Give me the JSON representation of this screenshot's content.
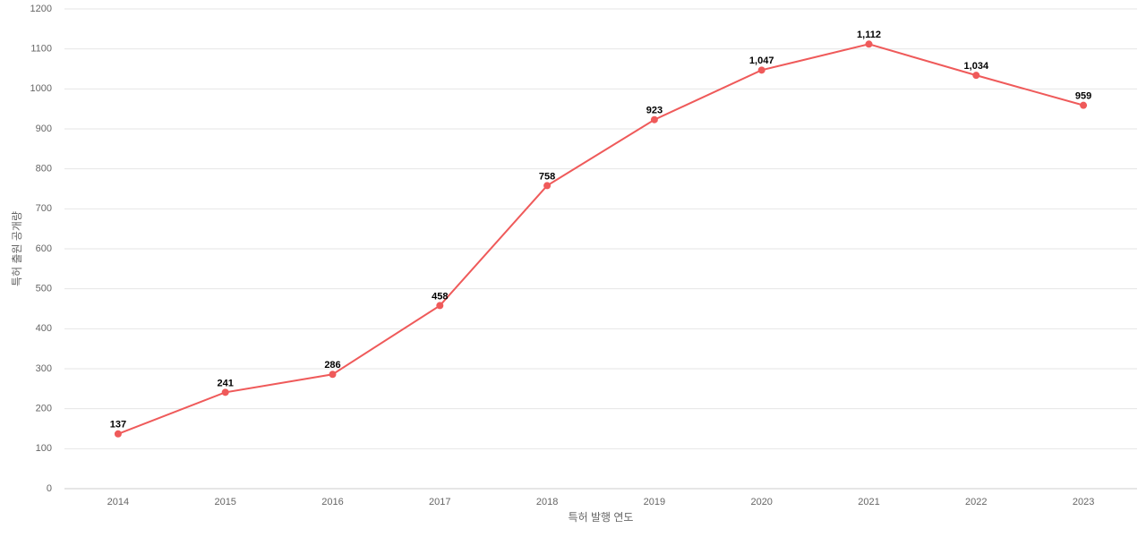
{
  "chart_data": {
    "type": "line",
    "x_label": "특허 발행 연도",
    "y_label": "특허 출원 공개량",
    "categories": [
      "2014",
      "2015",
      "2016",
      "2017",
      "2018",
      "2019",
      "2020",
      "2021",
      "2022",
      "2023"
    ],
    "values": [
      137,
      241,
      286,
      458,
      758,
      923,
      1047,
      1112,
      1034,
      959
    ],
    "value_labels": [
      "137",
      "241",
      "286",
      "458",
      "758",
      "923",
      "1,047",
      "1,112",
      "1,034",
      "959"
    ],
    "color": "#ef5a5a",
    "ylim": [
      0,
      1200
    ],
    "yticks": [
      0,
      100,
      200,
      300,
      400,
      500,
      600,
      700,
      800,
      900,
      1000,
      1100,
      1200
    ],
    "grid": true
  }
}
